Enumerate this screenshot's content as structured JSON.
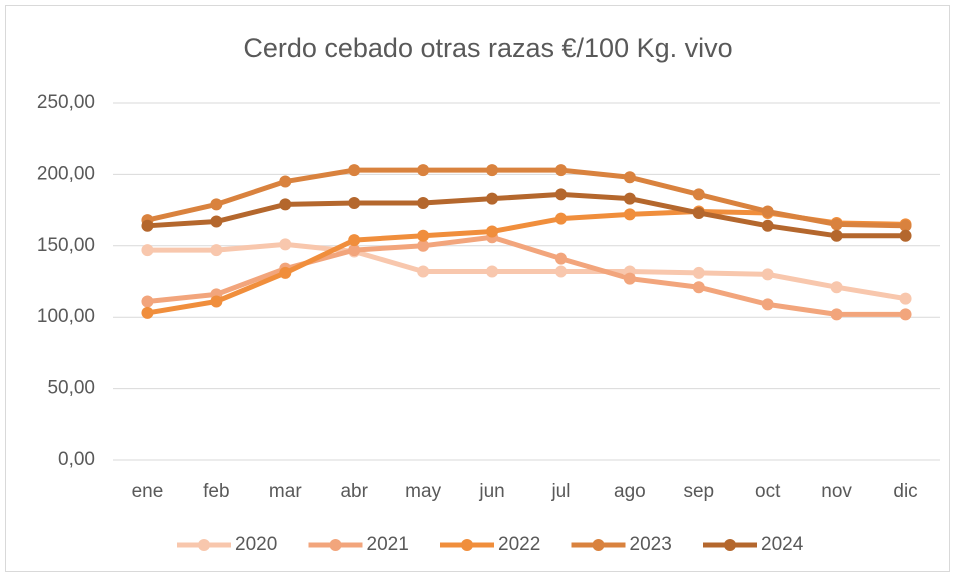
{
  "chart_data": {
    "type": "line",
    "title": "Cerdo cebado otras razas €/100 Kg. vivo",
    "categories": [
      "ene",
      "feb",
      "mar",
      "abr",
      "may",
      "jun",
      "jul",
      "ago",
      "sep",
      "oct",
      "nov",
      "dic"
    ],
    "series": [
      {
        "name": "2020",
        "color": "#f8c7ad",
        "values": [
          147,
          147,
          151,
          146,
          132,
          132,
          132,
          132,
          131,
          130,
          121,
          113
        ]
      },
      {
        "name": "2021",
        "color": "#f2a57c",
        "values": [
          111,
          116,
          134,
          147,
          150,
          156,
          141,
          127,
          121,
          109,
          102,
          102
        ]
      },
      {
        "name": "2022",
        "color": "#f08e3c",
        "values": [
          103,
          111,
          131,
          154,
          157,
          160,
          169,
          172,
          174,
          173,
          166,
          165
        ]
      },
      {
        "name": "2023",
        "color": "#d9823e",
        "values": [
          168,
          179,
          195,
          203,
          203,
          203,
          203,
          198,
          186,
          174,
          165,
          164
        ]
      },
      {
        "name": "2024",
        "color": "#b4672d",
        "values": [
          164,
          167,
          179,
          180,
          180,
          183,
          186,
          183,
          173,
          164,
          157,
          157
        ]
      }
    ],
    "ylim": [
      0,
      250
    ],
    "yticks": [
      {
        "value": 0,
        "label": "0,00"
      },
      {
        "value": 50,
        "label": "50,00"
      },
      {
        "value": 100,
        "label": "100,00"
      },
      {
        "value": 150,
        "label": "150,00"
      },
      {
        "value": 200,
        "label": "200,00"
      },
      {
        "value": 250,
        "label": "250,00"
      }
    ],
    "grid": true
  }
}
